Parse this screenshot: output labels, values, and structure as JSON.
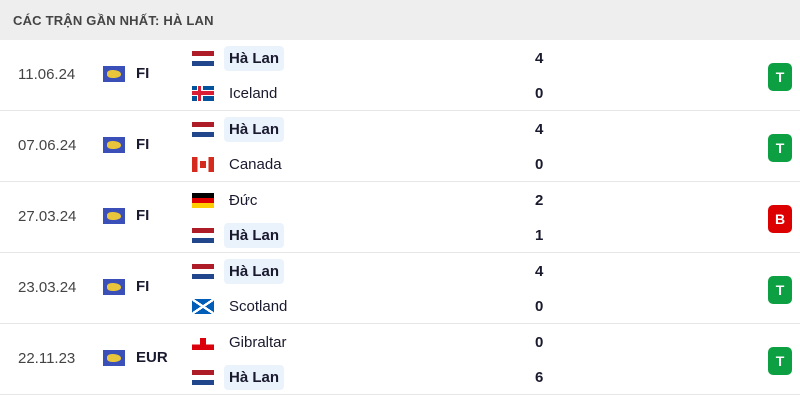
{
  "header": {
    "title": "CÁC TRẬN GẦN NHẤT: HÀ LAN"
  },
  "colors": {
    "win": "#0da043",
    "loss": "#dc0000",
    "highlight": "#eaf2fc"
  },
  "matches": [
    {
      "date": "11.06.24",
      "competition": "FI",
      "home": {
        "name": "Hà Lan",
        "flag": "nl",
        "score": "4",
        "highlight": true
      },
      "away": {
        "name": "Iceland",
        "flag": "is",
        "score": "0",
        "highlight": false
      },
      "result": "T"
    },
    {
      "date": "07.06.24",
      "competition": "FI",
      "home": {
        "name": "Hà Lan",
        "flag": "nl",
        "score": "4",
        "highlight": true
      },
      "away": {
        "name": "Canada",
        "flag": "ca",
        "score": "0",
        "highlight": false
      },
      "result": "T"
    },
    {
      "date": "27.03.24",
      "competition": "FI",
      "home": {
        "name": "Đức",
        "flag": "de",
        "score": "2",
        "highlight": false
      },
      "away": {
        "name": "Hà Lan",
        "flag": "nl",
        "score": "1",
        "highlight": true
      },
      "result": "B"
    },
    {
      "date": "23.03.24",
      "competition": "FI",
      "home": {
        "name": "Hà Lan",
        "flag": "nl",
        "score": "4",
        "highlight": true
      },
      "away": {
        "name": "Scotland",
        "flag": "sc",
        "score": "0",
        "highlight": false
      },
      "result": "T"
    },
    {
      "date": "22.11.23",
      "competition": "EUR",
      "home": {
        "name": "Gibraltar",
        "flag": "gi",
        "score": "0",
        "highlight": false
      },
      "away": {
        "name": "Hà Lan",
        "flag": "nl",
        "score": "6",
        "highlight": true
      },
      "result": "T"
    }
  ]
}
